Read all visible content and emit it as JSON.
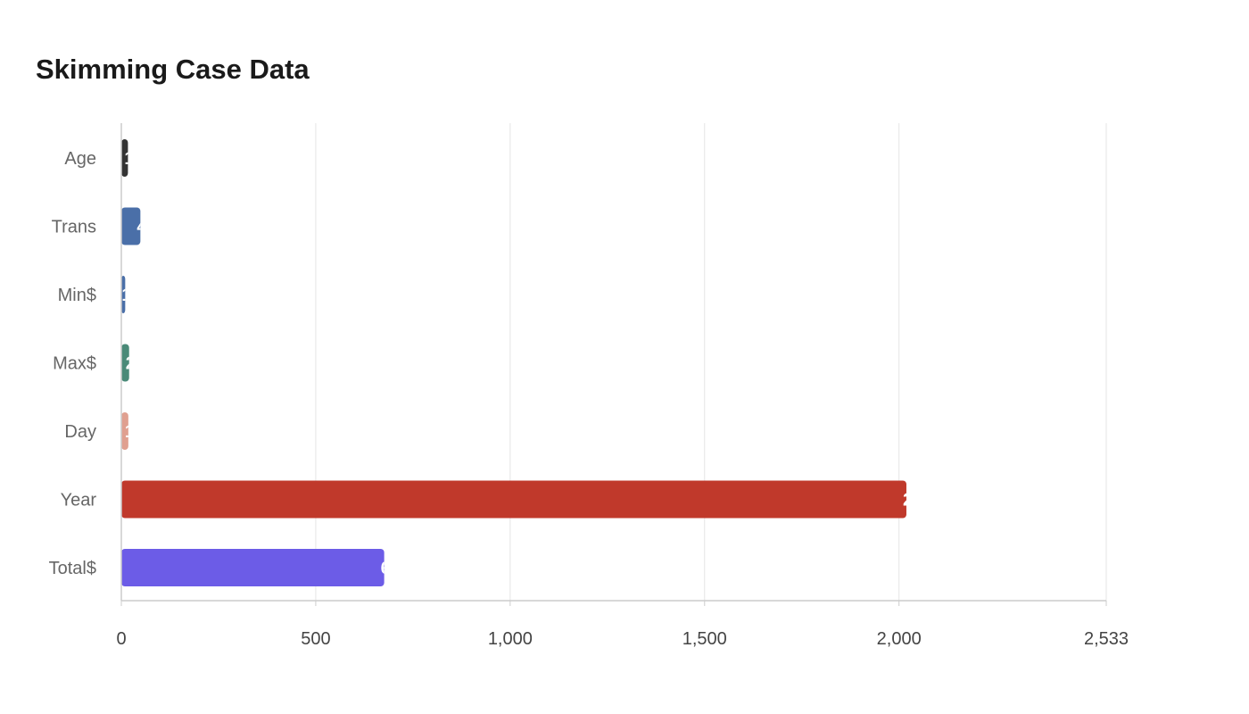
{
  "chart_data": {
    "type": "bar",
    "orientation": "horizontal",
    "title": "Skimming Case Data",
    "xlabel": "",
    "ylabel": "",
    "categories": [
      "Age",
      "Trans",
      "Min$",
      "Max$",
      "Day",
      "Year",
      "Total$"
    ],
    "values": [
      17,
      49,
      10,
      20,
      18,
      2019,
      676
    ],
    "xlim": [
      0,
      2533
    ],
    "xticks": [
      0,
      500,
      1000,
      1500,
      2000,
      2533
    ],
    "xtick_labels": [
      "0",
      "500",
      "1,000",
      "1,500",
      "2,000",
      "2,533"
    ],
    "colors": [
      "#333333",
      "#4a6fa8",
      "#4a6fa8",
      "#4a8a78",
      "#e0a090",
      "#c0392b",
      "#6c5ce7"
    ],
    "grid": true,
    "legend": "none"
  }
}
